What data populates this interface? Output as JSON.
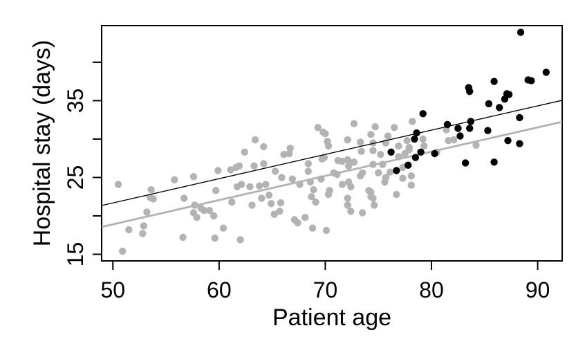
{
  "figure": {
    "background": "#ffffff",
    "plot_border_color": "#000000"
  },
  "chart_data": {
    "type": "scatter",
    "title": "",
    "xlabel": "Patient age",
    "ylabel": "Hospital stay (days)",
    "xlim": [
      48.94,
      92.31
    ],
    "ylim": [
      14.14,
      44.77
    ],
    "grid": false,
    "legend": "none",
    "x_ticks": [
      50,
      60,
      70,
      80,
      90
    ],
    "x_tick_labels": [
      "50",
      "60",
      "70",
      "80",
      "90"
    ],
    "y_ticks": [
      15,
      20,
      25,
      30,
      35,
      40
    ],
    "y_tick_labels": [
      "15",
      "",
      "25",
      "",
      "35",
      ""
    ],
    "series": [
      {
        "name": "younger-group-gray",
        "color": "#b3b3b3",
        "marker": "circle",
        "points": [
          [
            50.5,
            24.1
          ],
          [
            50.9,
            15.4
          ],
          [
            51.5,
            18.2
          ],
          [
            52.8,
            17.7
          ],
          [
            52.9,
            18.7
          ],
          [
            53.2,
            20.5
          ],
          [
            53.5,
            22.4
          ],
          [
            53.8,
            22.2
          ],
          [
            53.6,
            23.4
          ],
          [
            55.8,
            24.7
          ],
          [
            56.6,
            17.2
          ],
          [
            57.6,
            25.1
          ],
          [
            56.7,
            22.3
          ],
          [
            57.7,
            21.4
          ],
          [
            57.6,
            20.4
          ],
          [
            57.9,
            19.8
          ],
          [
            58.3,
            21.0
          ],
          [
            58.6,
            20.7
          ],
          [
            59.1,
            20.7
          ],
          [
            59.5,
            20.0
          ],
          [
            59.9,
            25.9
          ],
          [
            61.1,
            26.0
          ],
          [
            61.6,
            26.3
          ],
          [
            61.9,
            26.5
          ],
          [
            61.7,
            23.8
          ],
          [
            62.1,
            24.1
          ],
          [
            62.9,
            23.8
          ],
          [
            63.1,
            21.4
          ],
          [
            59.7,
            23.3
          ],
          [
            61.2,
            21.8
          ],
          [
            60.4,
            18.4
          ],
          [
            59.6,
            17.1
          ],
          [
            62.0,
            16.9
          ],
          [
            62.4,
            28.3
          ],
          [
            63.3,
            26.5
          ],
          [
            63.4,
            29.9
          ],
          [
            69.3,
            31.5
          ],
          [
            69.8,
            30.9
          ],
          [
            70.0,
            30.7
          ],
          [
            72.7,
            32.0
          ],
          [
            74.7,
            31.6
          ],
          [
            76.5,
            31.5
          ],
          [
            74.3,
            30.6
          ],
          [
            75.9,
            30.4
          ],
          [
            70.2,
            29.7
          ],
          [
            72.1,
            29.9
          ],
          [
            73.3,
            29.6
          ],
          [
            64.2,
            29.0
          ],
          [
            66.7,
            28.8
          ],
          [
            70.3,
            29.1
          ],
          [
            66.1,
            28.0
          ],
          [
            66.6,
            28.1
          ],
          [
            64.2,
            26.8
          ],
          [
            65.3,
            25.8
          ],
          [
            65.9,
            25.0
          ],
          [
            66.9,
            24.8
          ],
          [
            68.4,
            26.8
          ],
          [
            68.4,
            25.8
          ],
          [
            69.7,
            27.4
          ],
          [
            69.9,
            27.6
          ],
          [
            70.8,
            25.6
          ],
          [
            71.2,
            27.2
          ],
          [
            71.6,
            27.1
          ],
          [
            72.1,
            27.3
          ],
          [
            72.2,
            26.5
          ],
          [
            72.7,
            27.0
          ],
          [
            71.1,
            25.4
          ],
          [
            73.4,
            28.4
          ],
          [
            74.5,
            28.5
          ],
          [
            73.5,
            25.6
          ],
          [
            75.0,
            25.6
          ],
          [
            67.6,
            24.1
          ],
          [
            68.6,
            24.4
          ],
          [
            69.6,
            24.8
          ],
          [
            63.8,
            23.9
          ],
          [
            64.4,
            24.1
          ],
          [
            64.7,
            22.7
          ],
          [
            64.0,
            22.3
          ],
          [
            64.9,
            21.6
          ],
          [
            65.8,
            21.7
          ],
          [
            65.7,
            20.6
          ],
          [
            68.7,
            22.5
          ],
          [
            68.9,
            23.4
          ],
          [
            69.1,
            21.8
          ],
          [
            70.4,
            23.3
          ],
          [
            70.3,
            22.8
          ],
          [
            71.6,
            24.1
          ],
          [
            72.2,
            24.4
          ],
          [
            72.4,
            23.8
          ],
          [
            72.1,
            22.3
          ],
          [
            73.3,
            25.2
          ],
          [
            74.1,
            23.3
          ],
          [
            74.3,
            23.1
          ],
          [
            74.3,
            22.5
          ],
          [
            74.5,
            22.3
          ],
          [
            75.6,
            24.4
          ],
          [
            76.9,
            27.7
          ],
          [
            77.5,
            28.1
          ],
          [
            77.3,
            26.3
          ],
          [
            76.1,
            25.7
          ],
          [
            75.7,
            25.0
          ],
          [
            76.7,
            22.8
          ],
          [
            72.4,
            20.6
          ],
          [
            72.1,
            21.4
          ],
          [
            73.5,
            20.4
          ],
          [
            74.6,
            21.4
          ],
          [
            67.1,
            19.5
          ],
          [
            67.4,
            19.1
          ],
          [
            68.1,
            19.8
          ],
          [
            68.8,
            18.4
          ],
          [
            70.1,
            18.1
          ],
          [
            65.2,
            20.2
          ],
          [
            78.2,
            32.3
          ],
          [
            77.7,
            29.8
          ],
          [
            79.2,
            30.0
          ],
          [
            81.4,
            31.2
          ],
          [
            81.6,
            29.8
          ],
          [
            82.1,
            29.9
          ],
          [
            75.7,
            29.5
          ],
          [
            74.5,
            29.5
          ],
          [
            75.2,
            28.0
          ],
          [
            76.9,
            29.1
          ],
          [
            77.9,
            28.6
          ],
          [
            79.3,
            29.1
          ],
          [
            75.4,
            26.7
          ],
          [
            74.5,
            26.7
          ],
          [
            77.3,
            24.9
          ],
          [
            78.1,
            24.0
          ],
          [
            84.2,
            29.2
          ],
          [
            80.5,
            28.3
          ],
          [
            78.1,
            25.2
          ],
          [
            77.9,
            28.9
          ]
        ]
      },
      {
        "name": "older-group-black",
        "color": "#000000",
        "marker": "circle",
        "points": [
          [
            88.4,
            43.9
          ],
          [
            90.8,
            38.7
          ],
          [
            89.1,
            37.7
          ],
          [
            89.4,
            37.6
          ],
          [
            85.9,
            37.5
          ],
          [
            83.5,
            36.7
          ],
          [
            83.6,
            36.2
          ],
          [
            87.1,
            35.9
          ],
          [
            87.3,
            35.8
          ],
          [
            86.9,
            35.2
          ],
          [
            85.4,
            34.6
          ],
          [
            86.4,
            34.1
          ],
          [
            79.2,
            33.3
          ],
          [
            81.5,
            31.9
          ],
          [
            83.7,
            32.3
          ],
          [
            83.6,
            31.4
          ],
          [
            85.3,
            31.1
          ],
          [
            88.3,
            32.8
          ],
          [
            87.2,
            29.8
          ],
          [
            88.3,
            29.4
          ],
          [
            78.6,
            30.8
          ],
          [
            78.4,
            30.0
          ],
          [
            82.5,
            31.4
          ],
          [
            82.7,
            30.4
          ],
          [
            76.2,
            28.3
          ],
          [
            78.5,
            27.6
          ],
          [
            80.3,
            28.1
          ],
          [
            79.0,
            28.3
          ],
          [
            77.8,
            26.6
          ],
          [
            76.7,
            25.9
          ],
          [
            83.2,
            26.9
          ],
          [
            85.9,
            27.0
          ]
        ]
      }
    ],
    "fit_lines": [
      {
        "name": "fit-line-gray",
        "color": "#b3b3b3",
        "stroke_width": 2.8,
        "x": [
          48.94,
          92.31
        ],
        "y": [
          18.56,
          32.25
        ]
      },
      {
        "name": "fit-line-black",
        "color": "#000000",
        "stroke_width": 1.4,
        "x": [
          48.94,
          92.31
        ],
        "y": [
          21.35,
          35.05
        ]
      }
    ]
  }
}
